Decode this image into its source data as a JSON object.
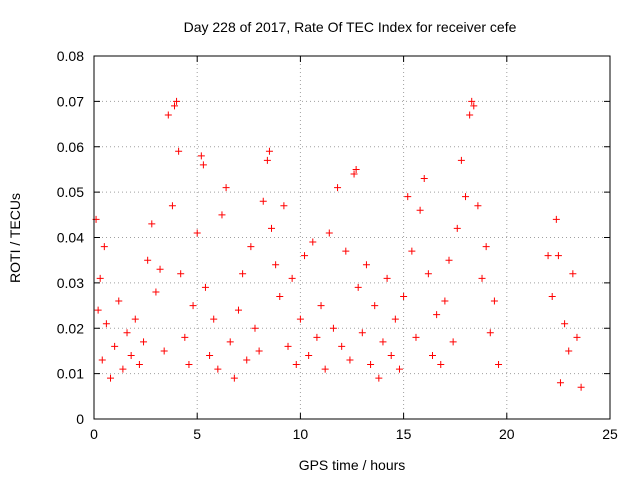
{
  "chart_data": {
    "type": "scatter",
    "title": "Day 228 of 2017, Rate Of TEC Index for receiver cefe",
    "xlabel": "GPS time / hours",
    "ylabel": "ROTI / TECUs",
    "xlim": [
      0,
      25
    ],
    "ylim": [
      0,
      0.08
    ],
    "xticks": [
      "0",
      "5",
      "10",
      "15",
      "20",
      "25"
    ],
    "yticks": [
      "0",
      "0.01",
      "0.02",
      "0.03",
      "0.04",
      "0.05",
      "0.06",
      "0.07",
      "0.08"
    ],
    "grid": true,
    "marker": "+",
    "color": "#ff0000",
    "x": [
      0.1,
      0.2,
      0.3,
      0.4,
      0.5,
      0.6,
      0.8,
      1.0,
      1.2,
      1.4,
      1.6,
      1.8,
      2.0,
      2.2,
      2.4,
      2.6,
      2.8,
      3.0,
      3.2,
      3.4,
      3.6,
      3.8,
      3.9,
      4.0,
      4.1,
      4.2,
      4.4,
      4.6,
      4.8,
      5.0,
      5.2,
      5.3,
      5.4,
      5.6,
      5.8,
      6.0,
      6.2,
      6.4,
      6.6,
      6.8,
      7.0,
      7.2,
      7.4,
      7.6,
      7.8,
      8.0,
      8.2,
      8.4,
      8.5,
      8.6,
      8.8,
      9.0,
      9.2,
      9.4,
      9.6,
      9.8,
      10.0,
      10.2,
      10.4,
      10.6,
      10.8,
      11.0,
      11.2,
      11.4,
      11.6,
      11.8,
      12.0,
      12.2,
      12.4,
      12.6,
      12.7,
      12.8,
      13.0,
      13.2,
      13.4,
      13.6,
      13.8,
      14.0,
      14.2,
      14.4,
      14.6,
      14.8,
      15.0,
      15.2,
      15.4,
      15.6,
      15.8,
      16.0,
      16.2,
      16.4,
      16.6,
      16.8,
      17.0,
      17.2,
      17.4,
      17.6,
      17.8,
      18.0,
      18.2,
      18.3,
      18.4,
      18.6,
      18.8,
      19.0,
      19.2,
      19.4,
      19.6,
      22.0,
      22.2,
      22.4,
      22.5,
      22.6,
      22.8,
      23.0,
      23.2,
      23.4,
      23.6
    ],
    "y": [
      0.044,
      0.024,
      0.031,
      0.013,
      0.038,
      0.021,
      0.009,
      0.016,
      0.026,
      0.011,
      0.019,
      0.014,
      0.022,
      0.012,
      0.017,
      0.035,
      0.043,
      0.028,
      0.033,
      0.015,
      0.067,
      0.047,
      0.069,
      0.07,
      0.059,
      0.032,
      0.018,
      0.012,
      0.025,
      0.041,
      0.058,
      0.056,
      0.029,
      0.014,
      0.022,
      0.011,
      0.045,
      0.051,
      0.017,
      0.009,
      0.024,
      0.032,
      0.013,
      0.038,
      0.02,
      0.015,
      0.048,
      0.057,
      0.059,
      0.042,
      0.034,
      0.027,
      0.047,
      0.016,
      0.031,
      0.012,
      0.022,
      0.036,
      0.014,
      0.039,
      0.018,
      0.025,
      0.011,
      0.041,
      0.02,
      0.051,
      0.016,
      0.037,
      0.013,
      0.054,
      0.055,
      0.029,
      0.019,
      0.034,
      0.012,
      0.025,
      0.009,
      0.017,
      0.031,
      0.014,
      0.022,
      0.011,
      0.027,
      0.049,
      0.037,
      0.018,
      0.046,
      0.053,
      0.032,
      0.014,
      0.023,
      0.012,
      0.026,
      0.035,
      0.017,
      0.042,
      0.057,
      0.049,
      0.067,
      0.07,
      0.069,
      0.047,
      0.031,
      0.038,
      0.019,
      0.026,
      0.012,
      0.036,
      0.027,
      0.044,
      0.036,
      0.008,
      0.021,
      0.015,
      0.032,
      0.018,
      0.007
    ]
  }
}
